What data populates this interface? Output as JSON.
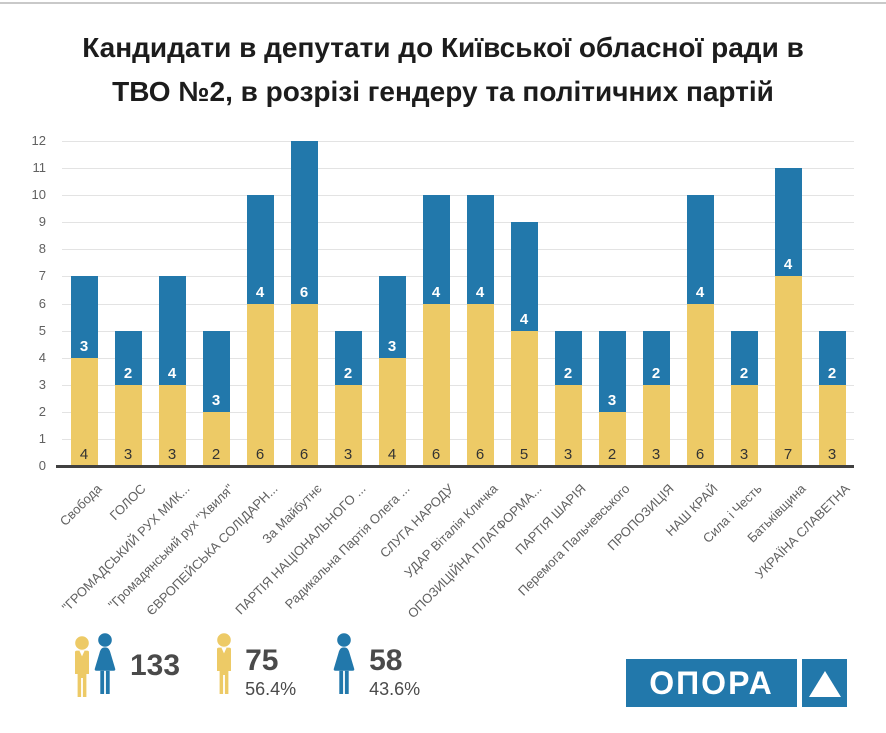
{
  "page": {
    "title_line1": "Кандидати в депутати до Київської обласної ради в",
    "title_line2": "ТВО №2, в розрізі гендеру та політичних партій"
  },
  "chart_data": {
    "type": "bar",
    "stacked": true,
    "title": "Кандидати в депутати до Київської обласної ради в ТВО №2, в розрізі гендеру та політичних партій",
    "categories": [
      "Свобода",
      "ГОЛОС",
      "\"ГРОМАДСЬКИЙ РУХ МИК...",
      "\"Громадянський рух \"Хвиля\"",
      "ЄВРОПЕЙСЬКА СОЛІДАРН...",
      "За Майбутнє",
      "ПАРТІЯ НАЦІОНАЛЬНОГО ...",
      "Радикальна Партія Олега ...",
      "СЛУГА НАРОДУ",
      "УДАР Віталія Кличка",
      "ОПОЗИЦІЙНА ПЛАТФОРМА...",
      "ПАРТІЯ ШАРІЯ",
      "Перемога Пальчевського",
      "ПРОПОЗИЦІЯ",
      "НАШ КРАЙ",
      "Сила і Честь",
      "Батьківщина",
      "УКРАЇНА СЛАВЕТНА"
    ],
    "series": [
      {
        "id": "male",
        "icon": "male-icon",
        "color": "#edca66",
        "label_color": "#333333",
        "values": [
          4,
          3,
          3,
          2,
          6,
          6,
          3,
          4,
          6,
          6,
          5,
          3,
          2,
          3,
          6,
          3,
          7,
          3
        ]
      },
      {
        "id": "female",
        "icon": "female-icon",
        "color": "#2278ab",
        "label_color": "#ffffff",
        "values": [
          3,
          2,
          4,
          3,
          4,
          6,
          2,
          3,
          4,
          4,
          4,
          2,
          3,
          2,
          4,
          2,
          4,
          2
        ]
      }
    ],
    "ylim": [
      0,
      12
    ],
    "yticks": [
      0,
      1,
      2,
      3,
      4,
      5,
      6,
      7,
      8,
      9,
      10,
      11,
      12
    ],
    "grid": true,
    "bar_value_labels": "inside-bottom-of-each-segment",
    "legend_position": "bottom"
  },
  "legend": {
    "total": {
      "value": "133"
    },
    "male": {
      "value": "75",
      "percent": "56.4%"
    },
    "female": {
      "value": "58",
      "percent": "43.6%"
    }
  },
  "logo": {
    "text": "ОПОРА"
  },
  "colors": {
    "male": "#edca66",
    "female": "#2278ab",
    "grid": "#e3e3e3",
    "axis_text": "#616161",
    "baseline": "#404040",
    "title": "#1c1c1c",
    "legend_text": "#4a4a4a",
    "logo": "#2278ab"
  }
}
